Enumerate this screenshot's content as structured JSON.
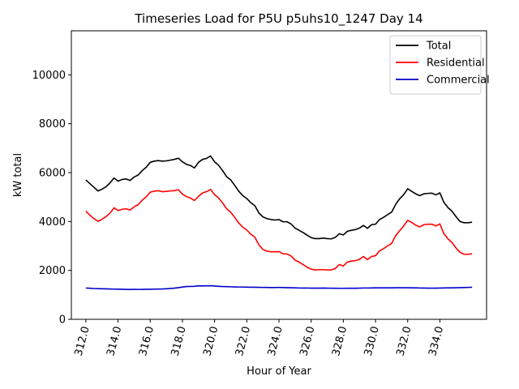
{
  "chart_data": {
    "type": "line",
    "title": "Timeseries Load for P5U p5uhs10_1247  Day 14",
    "xlabel": "Hour of Year",
    "ylabel": "kW total",
    "xlim": [
      311.1,
      336.9
    ],
    "ylim": [
      0,
      11800
    ],
    "x_ticks": [
      312,
      314,
      316,
      318,
      320,
      322,
      324,
      326,
      328,
      330,
      332,
      334
    ],
    "x_tick_labels": [
      "312.0",
      "314.0",
      "316.0",
      "318.0",
      "320.0",
      "322.0",
      "324.0",
      "326.0",
      "328.0",
      "330.0",
      "332.0",
      "334.0"
    ],
    "y_ticks": [
      0,
      2000,
      4000,
      6000,
      8000,
      10000
    ],
    "y_tick_labels": [
      "0",
      "2000",
      "4000",
      "6000",
      "8000",
      "10000"
    ],
    "legend_position": "top-right",
    "x_start": 312.0,
    "x_step": 0.25,
    "series": [
      {
        "name": "Total",
        "color": "#000000",
        "values": [
          5700,
          5550,
          5400,
          5250,
          5320,
          5420,
          5580,
          5780,
          5650,
          5720,
          5740,
          5680,
          5820,
          5900,
          6080,
          6220,
          6420,
          6470,
          6490,
          6470,
          6480,
          6510,
          6540,
          6590,
          6440,
          6340,
          6290,
          6190,
          6420,
          6540,
          6580,
          6680,
          6440,
          6300,
          6080,
          5830,
          5700,
          5480,
          5240,
          5060,
          4940,
          4770,
          4650,
          4350,
          4190,
          4120,
          4080,
          4060,
          4080,
          3990,
          3990,
          3900,
          3730,
          3640,
          3550,
          3440,
          3340,
          3300,
          3300,
          3320,
          3300,
          3290,
          3350,
          3500,
          3450,
          3600,
          3640,
          3670,
          3730,
          3840,
          3720,
          3870,
          3890,
          4080,
          4170,
          4280,
          4380,
          4700,
          4930,
          5100,
          5340,
          5230,
          5130,
          5060,
          5130,
          5150,
          5160,
          5090,
          5170,
          4780,
          4570,
          4420,
          4200,
          4000,
          3950,
          3950,
          3970
        ]
      },
      {
        "name": "Residential",
        "color": "#ff0000",
        "values": [
          4420,
          4260,
          4120,
          4010,
          4090,
          4200,
          4340,
          4560,
          4450,
          4500,
          4520,
          4470,
          4600,
          4690,
          4870,
          5010,
          5200,
          5240,
          5260,
          5220,
          5230,
          5250,
          5260,
          5300,
          5120,
          5020,
          4960,
          4860,
          5030,
          5170,
          5220,
          5310,
          5100,
          4960,
          4760,
          4520,
          4380,
          4170,
          3940,
          3770,
          3650,
          3480,
          3360,
          3050,
          2860,
          2790,
          2760,
          2760,
          2770,
          2680,
          2670,
          2590,
          2420,
          2340,
          2240,
          2130,
          2050,
          2020,
          2030,
          2030,
          2020,
          2020,
          2080,
          2240,
          2180,
          2340,
          2380,
          2400,
          2450,
          2570,
          2440,
          2570,
          2600,
          2800,
          2890,
          3000,
          3100,
          3420,
          3620,
          3820,
          4050,
          3960,
          3850,
          3780,
          3870,
          3890,
          3890,
          3820,
          3900,
          3500,
          3290,
          3140,
          2920,
          2740,
          2660,
          2660,
          2680
        ]
      },
      {
        "name": "Commercial",
        "color": "#0000cc",
        "values": [
          1280,
          1270,
          1260,
          1255,
          1250,
          1245,
          1240,
          1235,
          1232,
          1230,
          1225,
          1220,
          1225,
          1222,
          1225,
          1228,
          1230,
          1235,
          1238,
          1242,
          1250,
          1262,
          1275,
          1295,
          1320,
          1340,
          1345,
          1350,
          1370,
          1365,
          1370,
          1372,
          1360,
          1350,
          1340,
          1335,
          1330,
          1325,
          1322,
          1318,
          1315,
          1312,
          1310,
          1308,
          1305,
          1302,
          1300,
          1300,
          1305,
          1300,
          1295,
          1290,
          1285,
          1280,
          1278,
          1278,
          1275,
          1275,
          1275,
          1278,
          1275,
          1272,
          1270,
          1268,
          1268,
          1270,
          1270,
          1270,
          1275,
          1280,
          1280,
          1282,
          1285,
          1285,
          1285,
          1285,
          1288,
          1290,
          1290,
          1290,
          1290,
          1288,
          1285,
          1280,
          1278,
          1275,
          1275,
          1275,
          1278,
          1282,
          1285,
          1288,
          1290,
          1295,
          1300,
          1305,
          1310
        ]
      }
    ]
  }
}
